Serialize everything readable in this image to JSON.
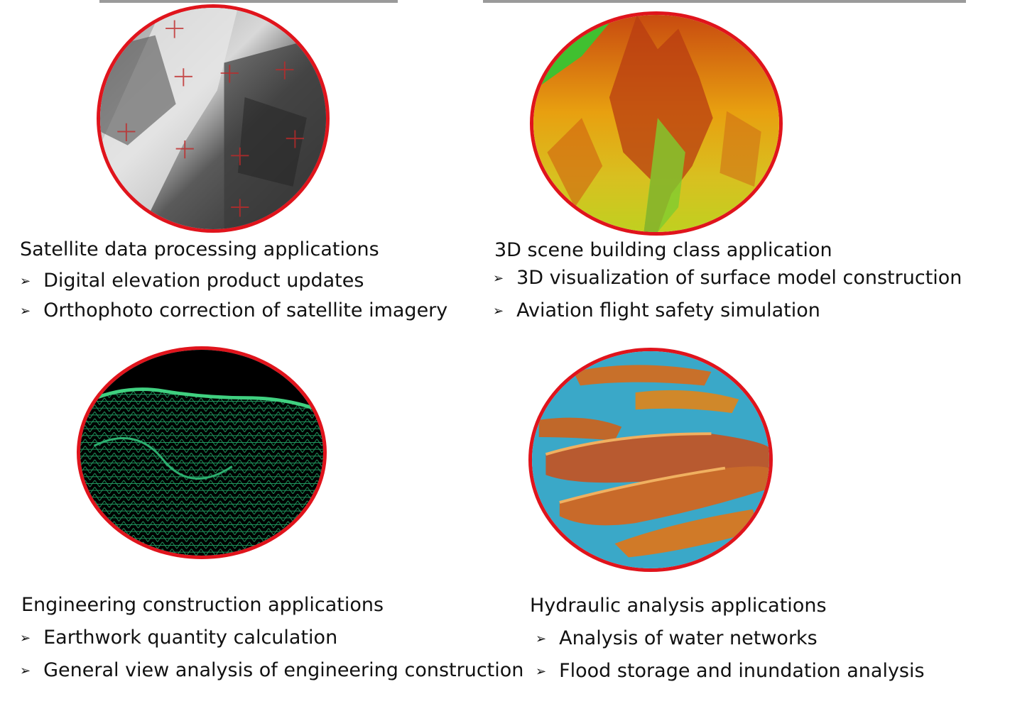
{
  "colors": {
    "ring": "#e0141c",
    "text": "#111111"
  },
  "panels": [
    {
      "title": "Satellite data  processing applications",
      "items": [
        "Digital elevation  product updates",
        "Orthophoto correction of satellite imagery"
      ],
      "image_icon": "grayscale-satellite-terrain-icon"
    },
    {
      "title": "3D scene building class application",
      "items": [
        "3D visualization of surface model construction",
        "Aviation flight safety simulation"
      ],
      "image_icon": "3d-terrain-relief-icon"
    },
    {
      "title": "Engineering construction applications",
      "items": [
        "Earthwork quantity calculation",
        "General view analysis of engineering construction"
      ],
      "image_icon": "wireframe-mesh-terrain-icon"
    },
    {
      "title": "Hydraulic analysis applications",
      "items": [
        "Analysis of water networks",
        "Flood storage and inundation analysis"
      ],
      "image_icon": "water-terrain-map-icon"
    }
  ],
  "bullet_glyph": "➢"
}
